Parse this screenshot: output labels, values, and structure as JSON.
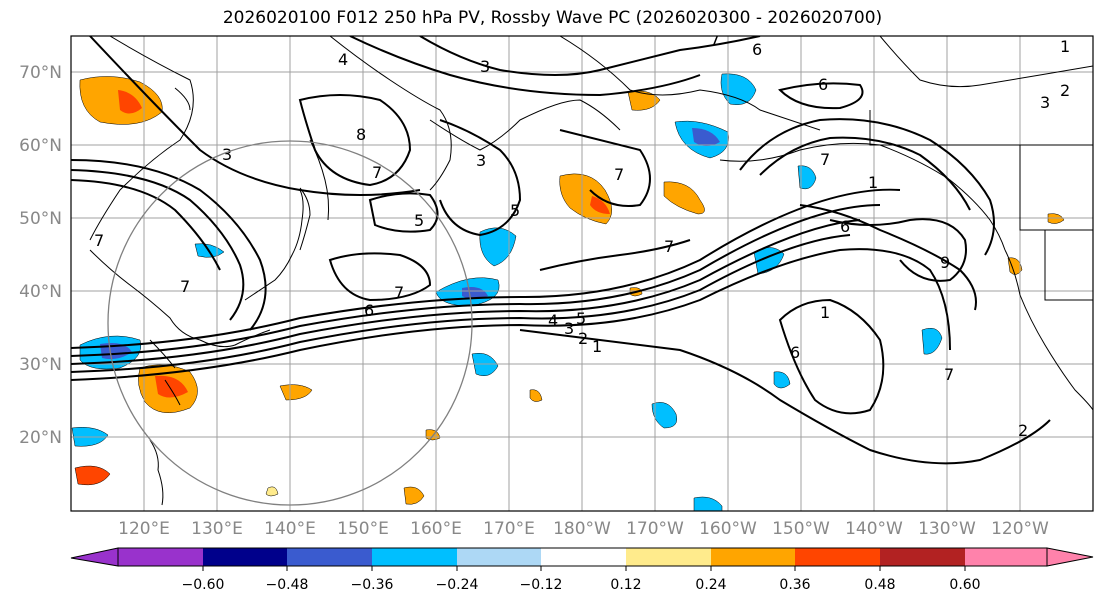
{
  "title": "2026020100 F012 250 hPa PV, Rossby Wave PC (2026020300 - 2026020700)",
  "map": {
    "lat_labels": [
      "70°N",
      "60°N",
      "50°N",
      "40°N",
      "30°N",
      "20°N"
    ],
    "lon_labels": [
      "120°E",
      "130°E",
      "140°E",
      "150°E",
      "160°E",
      "170°E",
      "180°W",
      "170°W",
      "160°W",
      "150°W",
      "140°W",
      "130°W",
      "120°W"
    ],
    "contour_labels": [
      "3",
      "4",
      "6",
      "7",
      "6",
      "3",
      "5",
      "3",
      "8",
      "7",
      "5",
      "7",
      "7",
      "7",
      "6",
      "7",
      "7",
      "6",
      "1",
      "3",
      "9",
      "1",
      "7",
      "2",
      "5",
      "4",
      "3",
      "2",
      "1",
      "6",
      "7",
      "1",
      "2"
    ],
    "colors": {
      "grid": "#a0a0a0",
      "coast": "#000000",
      "contour": "#000000"
    }
  },
  "colorbar": {
    "tick_labels": [
      "−0.60",
      "−0.48",
      "−0.36",
      "−0.24",
      "−0.12",
      "0.12",
      "0.24",
      "0.36",
      "0.48",
      "0.60"
    ],
    "colors": [
      "#9932cc",
      "#00008b",
      "#3a5bcf",
      "#00bfff",
      "#add8f5",
      "#ffffff",
      "#ffeb8c",
      "#ffa500",
      "#ff4500",
      "#b22222",
      "#ff82ab"
    ]
  }
}
